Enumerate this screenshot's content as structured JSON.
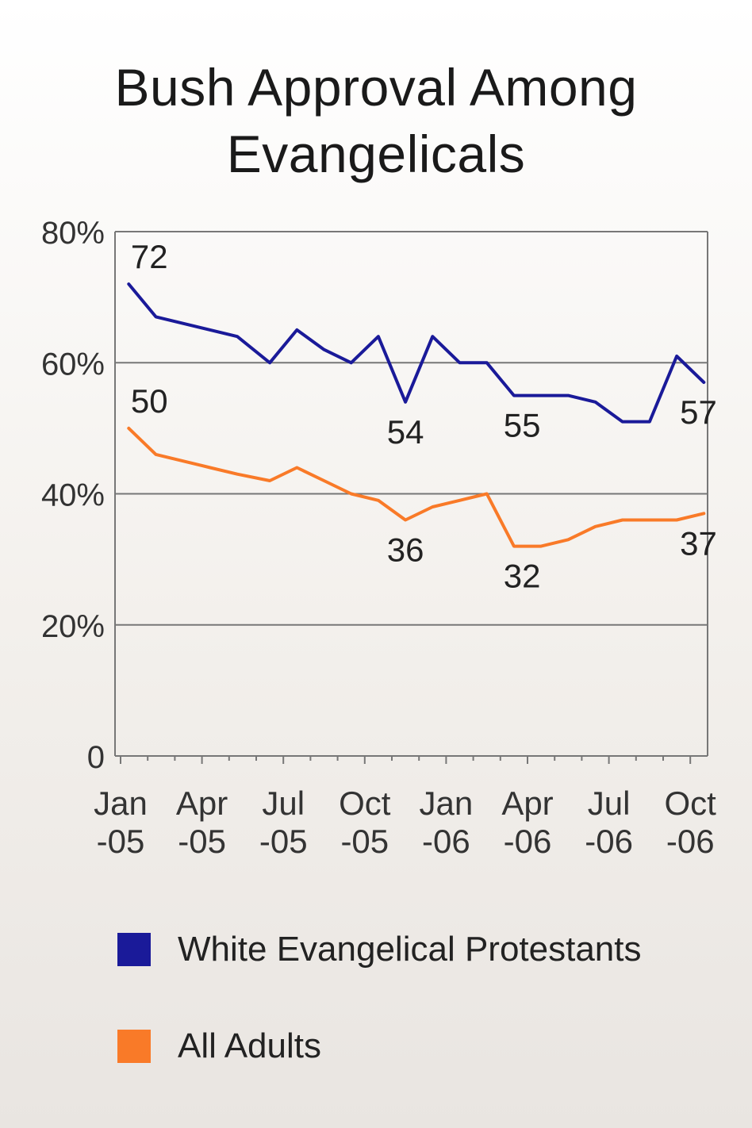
{
  "title_line1": "Bush Approval Among",
  "title_line2": "Evangelicals",
  "chart_data": {
    "type": "line",
    "title": "Bush Approval Among Evangelicals",
    "ylim": [
      0,
      80
    ],
    "y_ticks": [
      "0",
      "20%",
      "40%",
      "60%",
      "80%"
    ],
    "y_tick_values": [
      0,
      20,
      40,
      60,
      80
    ],
    "x_ticks": [
      {
        "line1": "Jan",
        "line2": "-05",
        "month": 0
      },
      {
        "line1": "Apr",
        "line2": "-05",
        "month": 3
      },
      {
        "line1": "Jul",
        "line2": "-05",
        "month": 6
      },
      {
        "line1": "Oct",
        "line2": "-05",
        "month": 9
      },
      {
        "line1": "Jan",
        "line2": "-06",
        "month": 12
      },
      {
        "line1": "Apr",
        "line2": "-06",
        "month": 15
      },
      {
        "line1": "Jul",
        "line2": "-06",
        "month": 18
      },
      {
        "line1": "Oct",
        "line2": "-06",
        "month": 21
      }
    ],
    "grid": true,
    "legend_position": "bottom",
    "series": [
      {
        "name": "White Evangelical Protestants",
        "color": "#1a1a99",
        "points": [
          [
            0.3,
            72
          ],
          [
            1.3,
            67
          ],
          [
            2.3,
            66
          ],
          [
            3.3,
            65
          ],
          [
            4.3,
            64
          ],
          [
            5.5,
            60
          ],
          [
            6.5,
            65
          ],
          [
            7.5,
            62
          ],
          [
            8.5,
            60
          ],
          [
            9.5,
            64
          ],
          [
            10.5,
            54
          ],
          [
            11.5,
            64
          ],
          [
            12.5,
            60
          ],
          [
            13.5,
            60
          ],
          [
            14.5,
            55
          ],
          [
            15.5,
            55
          ],
          [
            16.5,
            55
          ],
          [
            17.5,
            54
          ],
          [
            18.5,
            51
          ],
          [
            19.5,
            51
          ],
          [
            20.5,
            61
          ],
          [
            21.5,
            57
          ]
        ],
        "labels": [
          {
            "text": "72",
            "x": 0.3,
            "y": 72,
            "pos": "above"
          },
          {
            "text": "54",
            "x": 10.5,
            "y": 54,
            "pos": "below"
          },
          {
            "text": "55",
            "x": 14.8,
            "y": 55,
            "pos": "below"
          },
          {
            "text": "57",
            "x": 21.3,
            "y": 57,
            "pos": "below"
          }
        ]
      },
      {
        "name": "All Adults",
        "color": "#f97a28",
        "points": [
          [
            0.3,
            50
          ],
          [
            1.3,
            46
          ],
          [
            2.3,
            45
          ],
          [
            3.3,
            44
          ],
          [
            4.3,
            43
          ],
          [
            5.5,
            42
          ],
          [
            6.5,
            44
          ],
          [
            7.5,
            42
          ],
          [
            8.5,
            40
          ],
          [
            9.5,
            39
          ],
          [
            10.5,
            36
          ],
          [
            11.5,
            38
          ],
          [
            12.5,
            39
          ],
          [
            13.5,
            40
          ],
          [
            14.5,
            32
          ],
          [
            15.5,
            32
          ],
          [
            16.5,
            33
          ],
          [
            17.5,
            35
          ],
          [
            18.5,
            36
          ],
          [
            19.5,
            36
          ],
          [
            20.5,
            36
          ],
          [
            21.5,
            37
          ]
        ],
        "labels": [
          {
            "text": "50",
            "x": 0.3,
            "y": 50,
            "pos": "above"
          },
          {
            "text": "36",
            "x": 10.5,
            "y": 36,
            "pos": "below"
          },
          {
            "text": "32",
            "x": 14.8,
            "y": 32,
            "pos": "below"
          },
          {
            "text": "37",
            "x": 21.3,
            "y": 37,
            "pos": "below"
          }
        ]
      }
    ]
  },
  "legend": [
    {
      "label": "White Evangelical Protestants",
      "color": "#1a1a99"
    },
    {
      "label": "All Adults",
      "color": "#f97a28"
    }
  ]
}
